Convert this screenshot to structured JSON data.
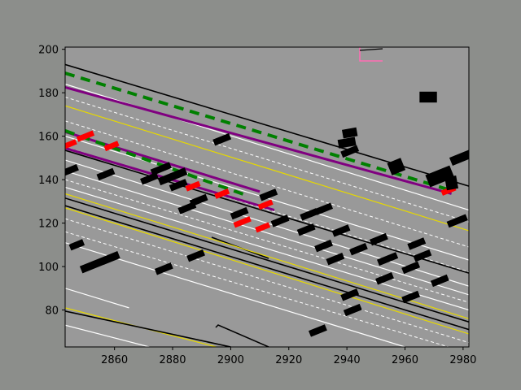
{
  "chart_data": {
    "type": "scatter",
    "title": "",
    "xlabel": "",
    "ylabel": "",
    "xlim": [
      2843,
      2982
    ],
    "ylim": [
      63,
      201
    ],
    "x_ticks": [
      2860,
      2880,
      2900,
      2920,
      2940,
      2960,
      2980
    ],
    "y_ticks": [
      80,
      100,
      120,
      140,
      160,
      180,
      200
    ],
    "x_tick_labels": [
      "2860",
      "2880",
      "2900",
      "2920",
      "2940",
      "2960",
      "2980"
    ],
    "y_tick_labels": [
      "80",
      "100",
      "120",
      "140",
      "160",
      "180",
      "200"
    ],
    "grid": false,
    "colors": {
      "background": "#8c8e8b",
      "road_surface": "#999999",
      "lane_solid": "#ffffff",
      "lane_dashed": "#ffffff",
      "road_edge": "#000000",
      "center_line": "#e6d800",
      "route": "#800080",
      "route_dash": "#008000",
      "ego_agent": "#ff0000",
      "other_agent": "#000000",
      "crosswalk": "#ff6eb4"
    },
    "series": [
      {
        "role": "road_edges",
        "lines": [
          [
            [
              2843,
              193.0
            ],
            [
              2982,
              137.0
            ]
          ],
          [
            [
              2843,
              153.5
            ],
            [
              2982,
              97.0
            ]
          ],
          [
            [
              2843,
              131.5
            ],
            [
              2982,
              74.5
            ]
          ],
          [
            [
              2843,
              128.0
            ],
            [
              2982,
              71.0
            ]
          ],
          [
            [
              2843,
              79.5
            ],
            [
              2900,
              63.0
            ]
          ]
        ]
      },
      {
        "role": "center_lines",
        "lines": [
          [
            [
              2843,
              174.0
            ],
            [
              2982,
              116.5
            ]
          ],
          [
            [
              2843,
              133.5
            ],
            [
              2982,
              76.0
            ]
          ],
          [
            [
              2843,
              127.0
            ],
            [
              2982,
              69.0
            ]
          ],
          [
            [
              2843,
              81.0
            ],
            [
              2895,
              63.0
            ]
          ]
        ]
      },
      {
        "role": "lane_lines_solid",
        "lines": [
          [
            [
              2843,
              184.0
            ],
            [
              2982,
              126.0
            ]
          ],
          [
            [
              2843,
              160.0
            ],
            [
              2982,
              103.0
            ]
          ],
          [
            [
              2843,
              149.0
            ],
            [
              2982,
              91.0
            ]
          ],
          [
            [
              2843,
              144.0
            ],
            [
              2982,
              87.0
            ]
          ],
          [
            [
              2843,
              136.5
            ],
            [
              2982,
              80.0
            ]
          ],
          [
            [
              2843,
              111.0
            ],
            [
              2960,
              63.0
            ]
          ],
          [
            [
              2843,
              90.0
            ],
            [
              2865,
              81.0
            ]
          ],
          [
            [
              2843,
              73.0
            ],
            [
              2872,
              63.0
            ]
          ]
        ]
      },
      {
        "role": "lane_lines_dashed",
        "lines": [
          [
            [
              2843,
              178.0
            ],
            [
              2982,
              120.5
            ]
          ],
          [
            [
              2843,
              167.0
            ],
            [
              2982,
              109.0
            ]
          ],
          [
            [
              2843,
              155.0
            ],
            [
              2982,
              97.5
            ]
          ],
          [
            [
              2843,
              140.0
            ],
            [
              2982,
              83.5
            ]
          ],
          [
            [
              2843,
              122.0
            ],
            [
              2982,
              65.0
            ]
          ],
          [
            [
              2843,
              116.0
            ],
            [
              2975,
              63.0
            ]
          ]
        ]
      },
      {
        "role": "route",
        "lines": [
          [
            [
              2843,
              182.5
            ],
            [
              2976,
              133.5
            ]
          ],
          [
            [
              2843,
              162.0
            ],
            [
              2910,
              134.5
            ]
          ],
          [
            [
              2843,
              154.5
            ],
            [
              2915,
              126.0
            ]
          ]
        ]
      },
      {
        "role": "route_dashes",
        "lines": [
          [
            [
              2843,
              189.0
            ],
            [
              2976,
              135.0
            ]
          ],
          [
            [
              2843,
              162.5
            ],
            [
              2905,
              133.0
            ]
          ]
        ]
      },
      {
        "role": "agents",
        "points": [
          {
            "x": 2844,
            "y": 156.0,
            "w": 6,
            "h": 2.5,
            "angle": -22,
            "kind": "ego"
          },
          {
            "x": 2850,
            "y": 160.0,
            "w": 6,
            "h": 2.5,
            "angle": -22,
            "kind": "ego"
          },
          {
            "x": 2859,
            "y": 155.5,
            "w": 5,
            "h": 2.5,
            "angle": -22,
            "kind": "ego"
          },
          {
            "x": 2887,
            "y": 137.0,
            "w": 5,
            "h": 2.5,
            "angle": -22,
            "kind": "ego"
          },
          {
            "x": 2897,
            "y": 133.5,
            "w": 5,
            "h": 2.5,
            "angle": -22,
            "kind": "ego"
          },
          {
            "x": 2904,
            "y": 120.5,
            "w": 6,
            "h": 2.5,
            "angle": -22,
            "kind": "ego"
          },
          {
            "x": 2911,
            "y": 118.0,
            "w": 5,
            "h": 2.5,
            "angle": -22,
            "kind": "ego"
          },
          {
            "x": 2912,
            "y": 128.5,
            "w": 5,
            "h": 2.5,
            "angle": -22,
            "kind": "ego"
          },
          {
            "x": 2975,
            "y": 135.0,
            "w": 5,
            "h": 2.5,
            "angle": -22,
            "kind": "ego"
          },
          {
            "x": 2845,
            "y": 144.5,
            "w": 5,
            "h": 3,
            "angle": -22,
            "kind": "other"
          },
          {
            "x": 2857,
            "y": 142.5,
            "w": 6,
            "h": 3,
            "angle": -22,
            "kind": "other"
          },
          {
            "x": 2847,
            "y": 110.0,
            "w": 5,
            "h": 3,
            "angle": -22,
            "kind": "other"
          },
          {
            "x": 2855,
            "y": 102.0,
            "w": 14,
            "h": 3.5,
            "angle": -22,
            "kind": "other"
          },
          {
            "x": 2872,
            "y": 140.5,
            "w": 6,
            "h": 3,
            "angle": -22,
            "kind": "other"
          },
          {
            "x": 2876,
            "y": 145.0,
            "w": 7,
            "h": 3,
            "angle": -22,
            "kind": "other"
          },
          {
            "x": 2880,
            "y": 141.5,
            "w": 10,
            "h": 3.5,
            "angle": -22,
            "kind": "other"
          },
          {
            "x": 2885,
            "y": 127.0,
            "w": 6,
            "h": 3,
            "angle": -22,
            "kind": "other"
          },
          {
            "x": 2889,
            "y": 130.5,
            "w": 6,
            "h": 3,
            "angle": -22,
            "kind": "other"
          },
          {
            "x": 2882,
            "y": 137.5,
            "w": 6,
            "h": 3,
            "angle": -22,
            "kind": "other"
          },
          {
            "x": 2888,
            "y": 105.0,
            "w": 6,
            "h": 3,
            "angle": -22,
            "kind": "other"
          },
          {
            "x": 2877,
            "y": 99.0,
            "w": 6,
            "h": 3,
            "angle": -22,
            "kind": "other"
          },
          {
            "x": 2897,
            "y": 158.5,
            "w": 6,
            "h": 3,
            "angle": -22,
            "kind": "other"
          },
          {
            "x": 2903,
            "y": 124.5,
            "w": 6,
            "h": 3,
            "angle": -22,
            "kind": "other"
          },
          {
            "x": 2913,
            "y": 133.0,
            "w": 6,
            "h": 3,
            "angle": -22,
            "kind": "other"
          },
          {
            "x": 2917,
            "y": 121.0,
            "w": 6,
            "h": 3,
            "angle": -22,
            "kind": "other"
          },
          {
            "x": 2926,
            "y": 117.0,
            "w": 6,
            "h": 3,
            "angle": -22,
            "kind": "other"
          },
          {
            "x": 2927,
            "y": 124.0,
            "w": 6,
            "h": 3,
            "angle": -22,
            "kind": "other"
          },
          {
            "x": 2932,
            "y": 126.5,
            "w": 6,
            "h": 3,
            "angle": -22,
            "kind": "other"
          },
          {
            "x": 2938,
            "y": 116.5,
            "w": 6,
            "h": 3,
            "angle": -22,
            "kind": "other"
          },
          {
            "x": 2932,
            "y": 109.5,
            "w": 6,
            "h": 3,
            "angle": -22,
            "kind": "other"
          },
          {
            "x": 2936,
            "y": 103.5,
            "w": 6,
            "h": 3,
            "angle": -22,
            "kind": "other"
          },
          {
            "x": 2944,
            "y": 108.0,
            "w": 6,
            "h": 3,
            "angle": -22,
            "kind": "other"
          },
          {
            "x": 2951,
            "y": 112.5,
            "w": 6,
            "h": 3,
            "angle": -22,
            "kind": "other"
          },
          {
            "x": 2954,
            "y": 103.5,
            "w": 7,
            "h": 3,
            "angle": -22,
            "kind": "other"
          },
          {
            "x": 2953,
            "y": 94.5,
            "w": 6,
            "h": 3,
            "angle": -22,
            "kind": "other"
          },
          {
            "x": 2964,
            "y": 110.5,
            "w": 6,
            "h": 3,
            "angle": -22,
            "kind": "other"
          },
          {
            "x": 2966,
            "y": 105.0,
            "w": 6,
            "h": 3,
            "angle": -22,
            "kind": "other"
          },
          {
            "x": 2962,
            "y": 99.5,
            "w": 6,
            "h": 3,
            "angle": -22,
            "kind": "other"
          },
          {
            "x": 2972,
            "y": 93.5,
            "w": 6,
            "h": 3,
            "angle": -22,
            "kind": "other"
          },
          {
            "x": 2962,
            "y": 86.0,
            "w": 6,
            "h": 3,
            "angle": -22,
            "kind": "other"
          },
          {
            "x": 2978,
            "y": 121.0,
            "w": 7,
            "h": 3,
            "angle": -22,
            "kind": "other"
          },
          {
            "x": 2941,
            "y": 87.0,
            "w": 6,
            "h": 3,
            "angle": -22,
            "kind": "other"
          },
          {
            "x": 2942,
            "y": 80.0,
            "w": 6,
            "h": 3,
            "angle": -22,
            "kind": "other"
          },
          {
            "x": 2930,
            "y": 70.5,
            "w": 6,
            "h": 3,
            "angle": -22,
            "kind": "other"
          },
          {
            "x": 2941,
            "y": 161.5,
            "w": 5,
            "h": 4,
            "angle": -10,
            "kind": "other"
          },
          {
            "x": 2940,
            "y": 157.0,
            "w": 6,
            "h": 4,
            "angle": -10,
            "kind": "other"
          },
          {
            "x": 2941,
            "y": 153.0,
            "w": 6,
            "h": 3,
            "angle": -22,
            "kind": "other"
          },
          {
            "x": 2957,
            "y": 146.0,
            "w": 5,
            "h": 6,
            "angle": -22,
            "kind": "other"
          },
          {
            "x": 2968,
            "y": 178.0,
            "w": 6,
            "h": 5,
            "angle": 0,
            "kind": "other"
          },
          {
            "x": 2972,
            "y": 141.5,
            "w": 9,
            "h": 6,
            "angle": -22,
            "kind": "other"
          },
          {
            "x": 2976,
            "y": 138.5,
            "w": 4,
            "h": 6,
            "angle": -10,
            "kind": "other"
          },
          {
            "x": 2980,
            "y": 150.5,
            "w": 9,
            "h": 4,
            "angle": -22,
            "kind": "other"
          }
        ]
      }
    ]
  }
}
